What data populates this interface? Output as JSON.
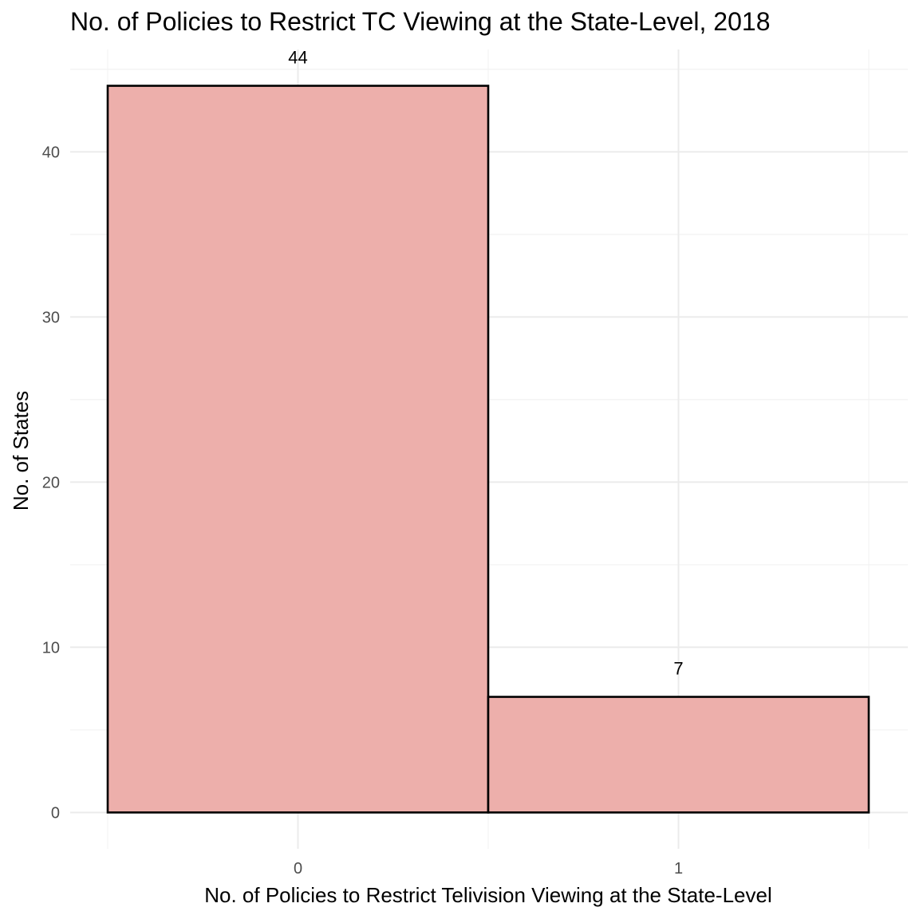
{
  "chart_data": {
    "type": "bar",
    "title": "No. of Policies to Restrict TC Viewing at the State-Level, 2018",
    "xlabel": "No. of Policies to Restrict Telivision Viewing at the State-Level",
    "ylabel": "No. of States",
    "categories": [
      "0",
      "1"
    ],
    "values": [
      44,
      7
    ],
    "data_labels": [
      "44",
      "7"
    ],
    "y_ticks": [
      "0",
      "10",
      "20",
      "30",
      "40"
    ],
    "y_tick_values": [
      0,
      10,
      20,
      30,
      40
    ],
    "ylim": [
      -2.2,
      46.2
    ],
    "grid": true,
    "legend": "none",
    "colors": {
      "bar_fill": "#edafab",
      "bar_outline": "#000000",
      "grid": "#ebebeb",
      "background": "#ffffff"
    }
  }
}
